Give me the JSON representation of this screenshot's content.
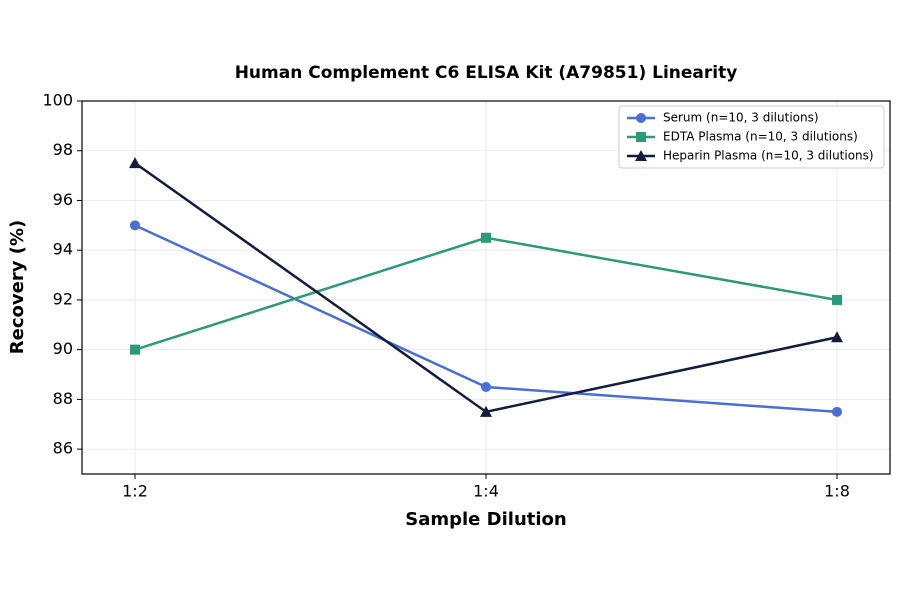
{
  "chart_data": {
    "type": "line",
    "title": "Human Complement C6 ELISA Kit (A79851) Linearity",
    "x_label": "Sample Dilution",
    "y_label": "Recovery (%)",
    "categories": [
      "1:2",
      "1:4",
      "1:8"
    ],
    "series": [
      {
        "name": "Serum (n=10, 3 dilutions)",
        "color": "#4a6fd4",
        "marker": "circle",
        "values": [
          95,
          88.5,
          87.5
        ]
      },
      {
        "name": "EDTA Plasma (n=10, 3 dilutions)",
        "color": "#2a9a78",
        "marker": "square",
        "values": [
          90,
          94.5,
          92
        ]
      },
      {
        "name": "Heparin Plasma (n=10, 3 dilutions)",
        "color": "#131c3d",
        "marker": "triangle",
        "values": [
          97.5,
          87.5,
          90.5
        ]
      }
    ],
    "ylim": [
      85,
      100
    ],
    "yticks": [
      86,
      88,
      90,
      92,
      94,
      96,
      98,
      100
    ],
    "grid": true,
    "legend": "upper right"
  }
}
